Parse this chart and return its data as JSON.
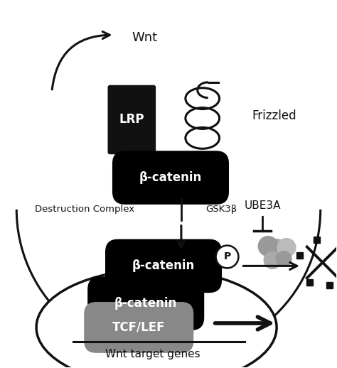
{
  "figsize": [
    4.74,
    5.18
  ],
  "dpi": 100,
  "bg_color": "#ffffff",
  "wnt_text": "Wnt",
  "frizzled_text": "Frizzled",
  "lrp_text": "LRP",
  "beta_cat_text": "β-catenin",
  "destruction_text": "Destruction Complex",
  "gsk3b_text": "GSK3β",
  "ube3a_text": "UBE3A",
  "tcflef_text": "TCF/LEF",
  "wnt_target_text": "Wnt target genes",
  "p_text": "P",
  "black": "#111111",
  "gray": "#888888",
  "white": "#ffffff"
}
